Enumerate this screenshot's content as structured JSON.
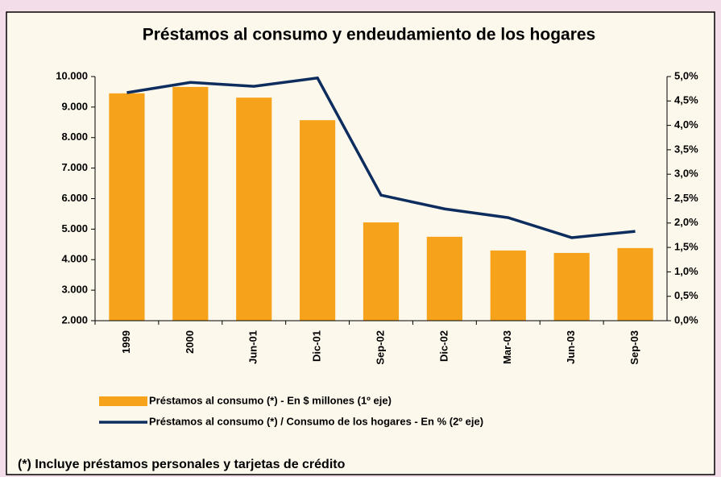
{
  "chart_data": {
    "type": "bar_line",
    "title": "Préstamos al consumo y endeudamiento de los hogares",
    "categories": [
      "1999",
      "2000",
      "Jun-01",
      "Dic-01",
      "Sep-02",
      "Dic-02",
      "Mar-03",
      "Jun-03",
      "Sep-03"
    ],
    "series": [
      {
        "name": "Préstamos al consumo (*) - En $ millones (1º eje)",
        "color": "#f7a21b",
        "type": "bar",
        "values": [
          9450,
          9660,
          9310,
          8570,
          5220,
          4750,
          4300,
          4220,
          4380
        ]
      },
      {
        "name": "Préstamos al consumo (*) / Consumo de los hogares - En % (2º eje)",
        "color": "#0d2d5e",
        "type": "line",
        "axis": "y2",
        "values": [
          4.67,
          4.88,
          4.8,
          4.97,
          2.57,
          2.29,
          2.11,
          1.7,
          1.83
        ]
      }
    ],
    "ylim": [
      2000,
      10000
    ],
    "yticks": [
      {
        "value": 2000,
        "label": "2.000"
      },
      {
        "value": 3000,
        "label": "3.000"
      },
      {
        "value": 4000,
        "label": "4.000"
      },
      {
        "value": 5000,
        "label": "5.000"
      },
      {
        "value": 6000,
        "label": "6.000"
      },
      {
        "value": 7000,
        "label": "7.000"
      },
      {
        "value": 8000,
        "label": "8.000"
      },
      {
        "value": 9000,
        "label": "9.000"
      },
      {
        "value": 10000,
        "label": "10.000"
      }
    ],
    "y2lim": [
      0,
      5
    ],
    "y2ticks": [
      {
        "value": 0,
        "label": "0,0%"
      },
      {
        "value": 0.5,
        "label": "0,5%"
      },
      {
        "value": 1,
        "label": "1,0%"
      },
      {
        "value": 1.5,
        "label": "1,5%"
      },
      {
        "value": 2,
        "label": "2,0%"
      },
      {
        "value": 2.5,
        "label": "2,5%"
      },
      {
        "value": 3,
        "label": "3,0%"
      },
      {
        "value": 3.5,
        "label": "3,5%"
      },
      {
        "value": 4,
        "label": "4,0%"
      },
      {
        "value": 4.5,
        "label": "4,5%"
      },
      {
        "value": 5,
        "label": "5,0%"
      }
    ],
    "note": "(*) Incluye préstamos personales y tarjetas de crédito"
  }
}
